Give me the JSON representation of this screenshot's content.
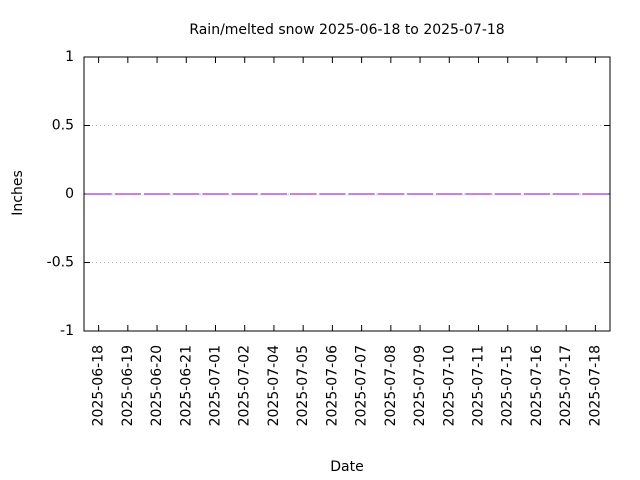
{
  "chart_data": {
    "type": "bar",
    "title": "Rain/melted snow 2025-06-18 to 2025-07-18",
    "x_label": "Date",
    "y_label": "Inches",
    "categories": [
      "2025-06-18",
      "2025-06-19",
      "2025-06-20",
      "2025-06-21",
      "2025-07-01",
      "2025-07-02",
      "2025-07-04",
      "2025-07-05",
      "2025-07-06",
      "2025-07-07",
      "2025-07-08",
      "2025-07-09",
      "2025-07-10",
      "2025-07-11",
      "2025-07-15",
      "2025-07-16",
      "2025-07-17",
      "2025-07-18"
    ],
    "values": [
      0,
      0,
      0,
      0,
      0,
      0,
      0,
      0,
      0,
      0,
      0,
      0,
      0,
      0,
      0,
      0,
      0,
      0
    ],
    "color": "#9400d3",
    "ylim": [
      -1,
      1
    ],
    "yticks": [
      -1,
      -0.5,
      0,
      0.5,
      1
    ],
    "grid": true
  }
}
